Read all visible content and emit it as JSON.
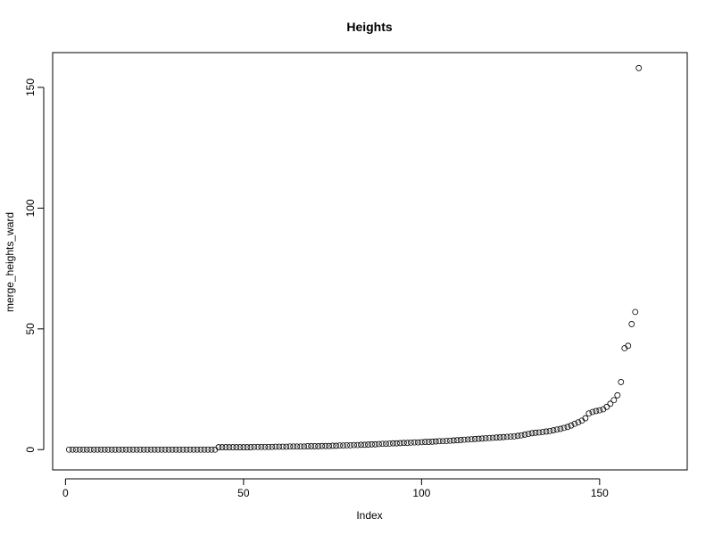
{
  "chart_data": {
    "type": "scatter",
    "title": "Heights",
    "xlabel": "Index",
    "ylabel": "merge_heights_ward",
    "xlim": [
      -3.6,
      174.6
    ],
    "ylim": [
      -8.4,
      164.4
    ],
    "xticks": [
      0,
      50,
      100,
      150
    ],
    "yticks": [
      0,
      50,
      100,
      150
    ],
    "grid": false,
    "marker": "open-circle",
    "series": [
      {
        "values": [
          0.0,
          0.0,
          0.0,
          0.0,
          0.0,
          0.0,
          0.0,
          0.0,
          0.0,
          0.0,
          0.0,
          0.0,
          0.0,
          0.0,
          0.0,
          0.0,
          0.0,
          0.0,
          0.0,
          0.0,
          0.0,
          0.0,
          0.0,
          0.0,
          0.0,
          0.0,
          0.0,
          0.0,
          0.0,
          0.0,
          0.0,
          0.0,
          0.0,
          0.0,
          0.0,
          0.0,
          0.0,
          0.0,
          0.0,
          0.0,
          0.0,
          0.0,
          1.0,
          1.0,
          1.0,
          1.0,
          1.0,
          1.0,
          1.0,
          1.0,
          1.0,
          1.0,
          1.1,
          1.1,
          1.1,
          1.1,
          1.1,
          1.1,
          1.2,
          1.2,
          1.2,
          1.2,
          1.3,
          1.3,
          1.3,
          1.3,
          1.3,
          1.4,
          1.4,
          1.4,
          1.4,
          1.5,
          1.5,
          1.5,
          1.6,
          1.6,
          1.7,
          1.7,
          1.8,
          1.8,
          1.9,
          1.9,
          2.0,
          2.0,
          2.1,
          2.2,
          2.2,
          2.3,
          2.4,
          2.4,
          2.5,
          2.6,
          2.6,
          2.7,
          2.8,
          2.8,
          2.9,
          3.0,
          3.0,
          3.1,
          3.2,
          3.2,
          3.3,
          3.4,
          3.5,
          3.5,
          3.6,
          3.7,
          3.8,
          3.9,
          4.0,
          4.1,
          4.2,
          4.3,
          4.4,
          4.5,
          4.6,
          4.7,
          4.8,
          4.9,
          5.0,
          5.1,
          5.2,
          5.3,
          5.4,
          5.5,
          5.7,
          5.9,
          6.2,
          6.5,
          6.8,
          7.0,
          7.1,
          7.3,
          7.5,
          7.7,
          8.0,
          8.3,
          8.6,
          9.0,
          9.4,
          10.0,
          10.7,
          11.3,
          12.0,
          13.0,
          15.0,
          15.6,
          16.0,
          16.3,
          16.7,
          17.7,
          19.0,
          20.5,
          22.5,
          28.0,
          42.0,
          43.0,
          52.0,
          57.0,
          158.0
        ]
      }
    ]
  }
}
